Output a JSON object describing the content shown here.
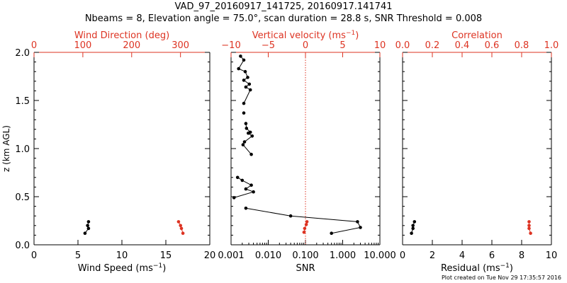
{
  "figure": {
    "title_line1": "VAD_97_20160917_141725, 20160917.141741",
    "title_line2": "Nbeams = 8, Elevation angle = 75.0°, scan duration = 28.8 s, SNR Threshold = 0.008",
    "footer": "Plot created on Tue Nov 29 17:35:57 2016"
  },
  "colors": {
    "black": "#000000",
    "red": "#dd3322",
    "ref_line": "#dd3322"
  },
  "chart_data": [
    {
      "id": "panel1",
      "type": "line",
      "ylabel": "z (km AGL)",
      "ylim": [
        0,
        2.0
      ],
      "yticks": [
        0.0,
        0.5,
        1.0,
        1.5,
        2.0
      ],
      "ytick_labels": [
        "0.0",
        "0.5",
        "1.0",
        "1.5",
        "2.0"
      ],
      "bottom_axis": {
        "label": "Wind Speed (ms",
        "label_sup": "−1",
        "label_end": ")",
        "lim": [
          0,
          20
        ],
        "scale": "linear",
        "ticks": [
          0,
          5,
          10,
          15,
          20
        ],
        "tick_labels": [
          "0",
          "5",
          "10",
          "15",
          "20"
        ]
      },
      "top_axis": {
        "label": "Wind Direction (deg)",
        "lim": [
          0,
          360
        ],
        "scale": "linear",
        "ticks": [
          0,
          100,
          200,
          300
        ],
        "tick_labels": [
          "0",
          "100",
          "200",
          "300"
        ]
      },
      "series": [
        {
          "axis": "bottom",
          "color": "black",
          "y": [
            0.12,
            0.17,
            0.2,
            0.24
          ],
          "x": [
            5.8,
            6.2,
            6.1,
            6.2
          ]
        },
        {
          "axis": "top",
          "color": "red",
          "y": [
            0.12,
            0.17,
            0.2,
            0.24
          ],
          "x": [
            305,
            302,
            300,
            296
          ]
        }
      ]
    },
    {
      "id": "panel2",
      "type": "line",
      "ylim": [
        0,
        2.0
      ],
      "yticks": [
        0.0,
        0.5,
        1.0,
        1.5,
        2.0
      ],
      "bottom_axis": {
        "label": "SNR",
        "lim": [
          0.001,
          10
        ],
        "scale": "log",
        "ticks": [
          0.001,
          0.01,
          0.1,
          1,
          10
        ],
        "tick_labels": [
          "0.001",
          "0.010",
          "0.100",
          "1.000",
          "10.000"
        ]
      },
      "top_axis": {
        "label": "Vertical velocity (ms",
        "label_sup": "−1",
        "label_end": ")",
        "lim": [
          -10,
          10
        ],
        "scale": "linear",
        "ticks": [
          -10,
          -5,
          0,
          5,
          10
        ],
        "tick_labels": [
          "−10",
          "−5",
          "0",
          "5",
          "10"
        ]
      },
      "reference_line": {
        "axis": "top",
        "value": 0
      },
      "series": [
        {
          "axis": "bottom",
          "color": "black",
          "segments": [
            {
              "y": [
                0.12,
                0.18,
                0.24,
                0.3,
                0.38
              ],
              "x": [
                0.5,
                3.0,
                2.5,
                0.04,
                0.0025
              ]
            },
            {
              "y": [
                0.49,
                0.55,
                0.58,
                0.62,
                0.67,
                0.7
              ],
              "x": [
                0.0012,
                0.004,
                0.0025,
                0.0035,
                0.002,
                0.0015
              ]
            },
            {
              "y": [
                0.94,
                1.04,
                1.07,
                1.13,
                1.16,
                1.17,
                1.21,
                1.26
              ],
              "x": [
                0.0035,
                0.0021,
                0.0023,
                0.0037,
                0.0029,
                0.0033,
                0.0026,
                0.0025
              ]
            },
            {
              "y": [
                1.37
              ],
              "x": [
                0.0022
              ]
            },
            {
              "y": [
                1.47,
                1.61,
                1.64,
                1.67,
                1.71,
                1.74,
                1.8,
                1.83,
                1.92,
                1.96
              ],
              "x": [
                0.0022,
                0.0033,
                0.0025,
                0.0031,
                0.0022,
                0.0028,
                0.0024,
                0.0016,
                0.0022,
                0.0018
              ]
            }
          ]
        },
        {
          "axis": "top",
          "color": "red",
          "y": [
            0.13,
            0.17,
            0.21,
            0.24
          ],
          "x": [
            -0.2,
            -0.1,
            0.1,
            0.2
          ]
        }
      ]
    },
    {
      "id": "panel3",
      "type": "line",
      "ylim": [
        0,
        2.0
      ],
      "yticks": [
        0.0,
        0.5,
        1.0,
        1.5,
        2.0
      ],
      "bottom_axis": {
        "label": "Residual (ms",
        "label_sup": "−1",
        "label_end": ")",
        "lim": [
          0,
          10
        ],
        "scale": "linear",
        "ticks": [
          0,
          2,
          4,
          6,
          8,
          10
        ],
        "tick_labels": [
          "0",
          "2",
          "4",
          "6",
          "8",
          "10"
        ]
      },
      "top_axis": {
        "label": "Correlation",
        "lim": [
          0,
          1.0
        ],
        "scale": "linear",
        "ticks": [
          0,
          0.2,
          0.4,
          0.6,
          0.8,
          1.0
        ],
        "tick_labels": [
          "0.0",
          "0.2",
          "0.4",
          "0.6",
          "0.8",
          "1.0"
        ]
      },
      "series": [
        {
          "axis": "bottom",
          "color": "black",
          "y": [
            0.12,
            0.17,
            0.2,
            0.24
          ],
          "x": [
            0.6,
            0.7,
            0.7,
            0.8
          ]
        },
        {
          "axis": "top",
          "color": "red",
          "y": [
            0.12,
            0.17,
            0.2,
            0.24
          ],
          "x": [
            0.86,
            0.85,
            0.85,
            0.85
          ]
        }
      ]
    }
  ]
}
